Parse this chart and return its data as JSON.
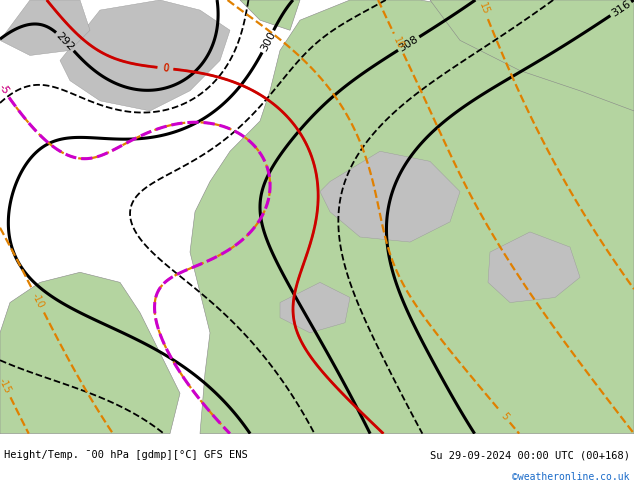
{
  "title_left": "Height/Temp. ¯00 hPa [gdmp][°C] GFS ENS",
  "title_right": "Su 29-09-2024 00:00 UTC (00+168)",
  "watermark": "©weatheronline.co.uk",
  "watermark_color": "#1a6bc9",
  "footer_bg": "#d8d8d8",
  "fig_width": 6.34,
  "fig_height": 4.9,
  "dpi": 100,
  "ocean_color": "#b8cfe0",
  "green_land_color": "#b4d4a0",
  "gray_land_color": "#c0c0c0",
  "black": "#000000",
  "orange": "#e08000",
  "red": "#cc0000",
  "magenta": "#cc00cc",
  "footer_font_size": 7.5,
  "footer_color": "#000000",
  "label_fs": 7
}
